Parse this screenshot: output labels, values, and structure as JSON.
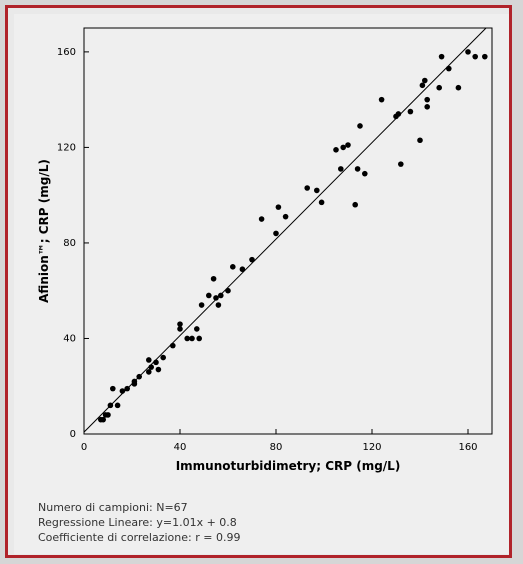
{
  "chart_data": {
    "type": "scatter",
    "xlabel": "Immunoturbidimetry; CRP (mg/L)",
    "ylabel": "Afinion™; CRP (mg/L)",
    "xlim": [
      0,
      170
    ],
    "ylim": [
      0,
      170
    ],
    "xticks": [
      "0",
      "40",
      "80",
      "120",
      "160"
    ],
    "yticks": [
      "0",
      "40",
      "80",
      "120",
      "160"
    ],
    "grid": false,
    "regression_line": {
      "slope": 1.01,
      "intercept": 0.8
    },
    "points": [
      [
        7,
        6
      ],
      [
        8,
        6
      ],
      [
        9,
        8
      ],
      [
        10,
        8
      ],
      [
        11,
        12
      ],
      [
        12,
        19
      ],
      [
        14,
        12
      ],
      [
        16,
        18
      ],
      [
        18,
        19
      ],
      [
        21,
        22
      ],
      [
        21,
        21
      ],
      [
        23,
        24
      ],
      [
        27,
        26
      ],
      [
        27,
        31
      ],
      [
        28,
        28
      ],
      [
        30,
        30
      ],
      [
        31,
        27
      ],
      [
        33,
        32
      ],
      [
        37,
        37
      ],
      [
        40,
        44
      ],
      [
        40,
        46
      ],
      [
        43,
        40
      ],
      [
        45,
        40
      ],
      [
        47,
        44
      ],
      [
        48,
        40
      ],
      [
        49,
        54
      ],
      [
        52,
        58
      ],
      [
        54,
        65
      ],
      [
        55,
        57
      ],
      [
        56,
        54
      ],
      [
        57,
        58
      ],
      [
        60,
        60
      ],
      [
        62,
        70
      ],
      [
        66,
        69
      ],
      [
        70,
        73
      ],
      [
        74,
        90
      ],
      [
        80,
        84
      ],
      [
        81,
        95
      ],
      [
        84,
        91
      ],
      [
        93,
        103
      ],
      [
        97,
        102
      ],
      [
        99,
        97
      ],
      [
        105,
        119
      ],
      [
        107,
        111
      ],
      [
        108,
        120
      ],
      [
        110,
        121
      ],
      [
        113,
        96
      ],
      [
        114,
        111
      ],
      [
        115,
        129
      ],
      [
        117,
        109
      ],
      [
        124,
        140
      ],
      [
        130,
        133
      ],
      [
        131,
        134
      ],
      [
        132,
        113
      ],
      [
        136,
        135
      ],
      [
        140,
        123
      ],
      [
        141,
        146
      ],
      [
        142,
        148
      ],
      [
        143,
        137
      ],
      [
        143,
        140
      ],
      [
        148,
        145
      ],
      [
        152,
        153
      ],
      [
        156,
        145
      ],
      [
        160,
        160
      ],
      [
        163,
        158
      ],
      [
        167,
        158
      ],
      [
        149,
        158
      ]
    ]
  },
  "stats": {
    "n_line": "Numero di campioni: N=67",
    "regression_line": "Regressione Lineare: y=1.01x + 0.8",
    "correlation_line": "Coefficiente di correlazione: r = 0.99"
  },
  "colors": {
    "frame": "#b0232a",
    "panel": "#efefef",
    "points": "#000000"
  }
}
